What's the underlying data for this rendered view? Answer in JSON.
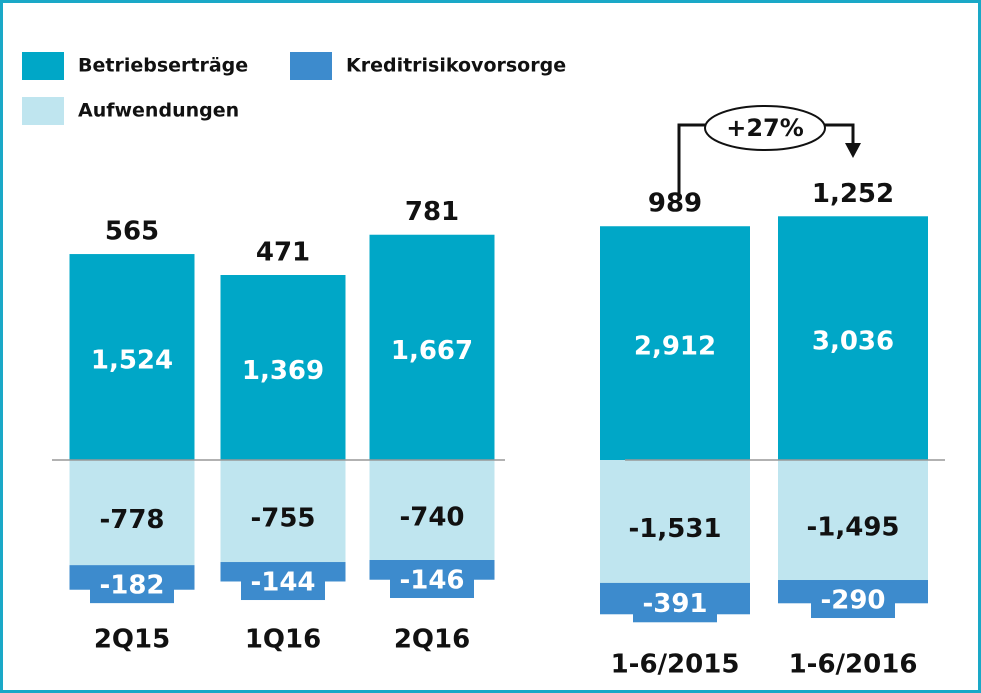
{
  "chart_data": [
    {
      "type": "bar",
      "stacked": true,
      "categories": [
        "2Q15",
        "1Q16",
        "2Q16"
      ],
      "totals": [
        565,
        471,
        781
      ],
      "series": [
        {
          "name": "Betriebserträge",
          "color": "#00a7c7",
          "values": [
            1524,
            1369,
            1667
          ],
          "value_labels": [
            "1,524",
            "1,369",
            "1,667"
          ]
        },
        {
          "name": "Aufwendungen",
          "color": "#bfe5ef",
          "values": [
            -778,
            -755,
            -740
          ]
        },
        {
          "name": "Kreditrisikovorsorge",
          "color": "#3d8bcd",
          "values": [
            -182,
            -144,
            -146
          ]
        }
      ]
    },
    {
      "type": "bar",
      "stacked": true,
      "categories": [
        "1-6/2015",
        "1-6/2016"
      ],
      "totals": [
        989,
        1252
      ],
      "totals_labels": [
        "989",
        "1,252"
      ],
      "annotation": "+27%",
      "series": [
        {
          "color": "#00a7c7",
          "values": [
            2912,
            3036
          ],
          "value_labels": [
            "2,912",
            "3,036"
          ]
        },
        {
          "color": "#bfe5ef",
          "values": [
            -1531,
            -1495
          ],
          "value_labels": [
            "-1,531",
            "-1,495"
          ]
        },
        {
          "color": "#3d8bcd",
          "values": [
            -391,
            -290
          ]
        }
      ]
    }
  ]
}
